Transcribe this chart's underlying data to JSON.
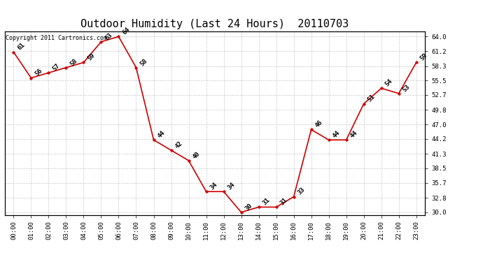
{
  "title": "Outdoor Humidity (Last 24 Hours)  20110703",
  "copyright": "Copyright 2011 Cartronics.com",
  "x_labels": [
    "00:00",
    "01:00",
    "02:00",
    "03:00",
    "04:00",
    "05:00",
    "06:00",
    "07:00",
    "08:00",
    "09:00",
    "10:00",
    "11:00",
    "12:00",
    "13:00",
    "14:00",
    "15:00",
    "16:00",
    "17:00",
    "18:00",
    "19:00",
    "20:00",
    "21:00",
    "22:00",
    "23:00"
  ],
  "y_values": [
    61,
    56,
    57,
    58,
    59,
    63,
    64,
    58,
    44,
    42,
    40,
    34,
    34,
    30,
    31,
    31,
    33,
    46,
    44,
    44,
    51,
    54,
    53,
    59
  ],
  "y_ticks": [
    30.0,
    32.8,
    35.7,
    38.5,
    41.3,
    44.2,
    47.0,
    49.8,
    52.7,
    55.5,
    58.3,
    61.2,
    64.0
  ],
  "ylim": [
    29.5,
    65.0
  ],
  "xlim": [
    -0.5,
    23.5
  ],
  "line_color": "#cc0000",
  "marker_color": "#cc0000",
  "bg_color": "#ffffff",
  "grid_color": "#bbbbbb",
  "title_fontsize": 11,
  "label_fontsize": 6.5,
  "tick_fontsize": 6.5,
  "copyright_fontsize": 6.0
}
